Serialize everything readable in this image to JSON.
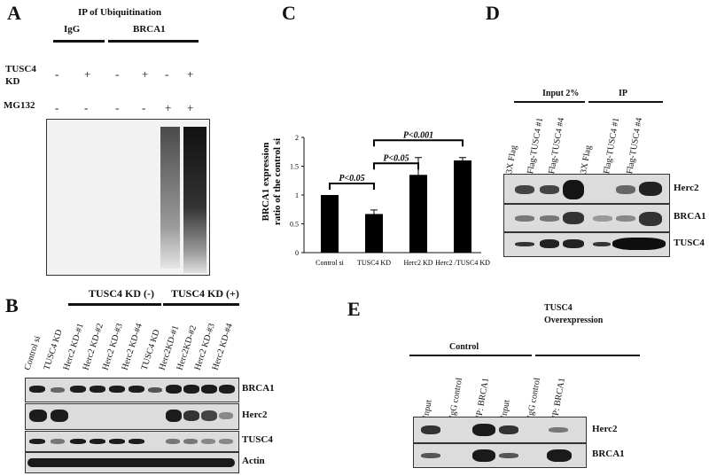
{
  "panels": {
    "A": "A",
    "B": "B",
    "C": "C",
    "D": "D",
    "E": "E"
  },
  "panelA": {
    "title": "IP of Ubiquitination",
    "groups": [
      "IgG",
      "BRCA1"
    ],
    "row1_label_line1": "TUSC4",
    "row1_label_line2": "KD",
    "row1_signs": [
      "-",
      "+",
      "-",
      "+",
      "-",
      "+"
    ],
    "row2_label": "MG132",
    "row2_signs": [
      "-",
      "-",
      "-",
      "-",
      "+",
      "+"
    ]
  },
  "panelB": {
    "group_neg": "TUSC4 KD (-)",
    "group_pos": "TUSC4 KD (+)",
    "lanes": [
      "Control  si",
      "TUSC4 KD",
      "Herc2 KD-#1",
      "Herc2 KD-#2",
      "Herc2 KD-#3",
      "Herc2 KD-#4",
      "TUSC4 KD",
      "Herc2KD-#1",
      "Herc2KD-#2",
      "Herc2 KD-#3",
      "Herc2 KD-#4"
    ],
    "rows": [
      "BRCA1",
      "Herc2",
      "TUSC4",
      "Actin"
    ]
  },
  "chart_data": {
    "type": "bar",
    "categories": [
      "Control si",
      "TUSC4 KD",
      "Herc2 KD",
      "Herc2 /TUSC4 KD"
    ],
    "values": [
      1.0,
      0.67,
      1.35,
      1.6
    ],
    "errors": [
      0,
      0.07,
      0.3,
      0.05
    ],
    "ylabel_line1": "BRCA1 expression",
    "ylabel_line2": "ratio of the control si",
    "ylim": [
      0,
      2
    ],
    "yticks": [
      "0",
      "0.5",
      "1",
      "1.5",
      "2"
    ],
    "significance": [
      {
        "label": "P<0.05",
        "from": 0,
        "to": 1
      },
      {
        "label": "P<0.05",
        "from": 1,
        "to": 2
      },
      {
        "label": "P<0.001",
        "from": 1,
        "to": 3
      }
    ]
  },
  "panelD": {
    "groups": [
      "Input 2%",
      "IP"
    ],
    "lanes": [
      "3X Flag",
      "Flag-TUSC4 #1",
      "Flag-TUSC4 #4",
      "3X Flag",
      "Flag-TUSC4 #1",
      "Flag-TUSC4 #4"
    ],
    "rows": [
      "Herc2",
      "BRCA1",
      "TUSC4"
    ]
  },
  "panelE": {
    "group1": "Control",
    "group2_line1": "TUSC4",
    "group2_line2": "Overexpression",
    "lanes": [
      "Input",
      "IgG control",
      "IP: BRCA1",
      "Input",
      "IgG control",
      "IP: BRCA1"
    ],
    "rows": [
      "Herc2",
      "BRCA1"
    ]
  }
}
